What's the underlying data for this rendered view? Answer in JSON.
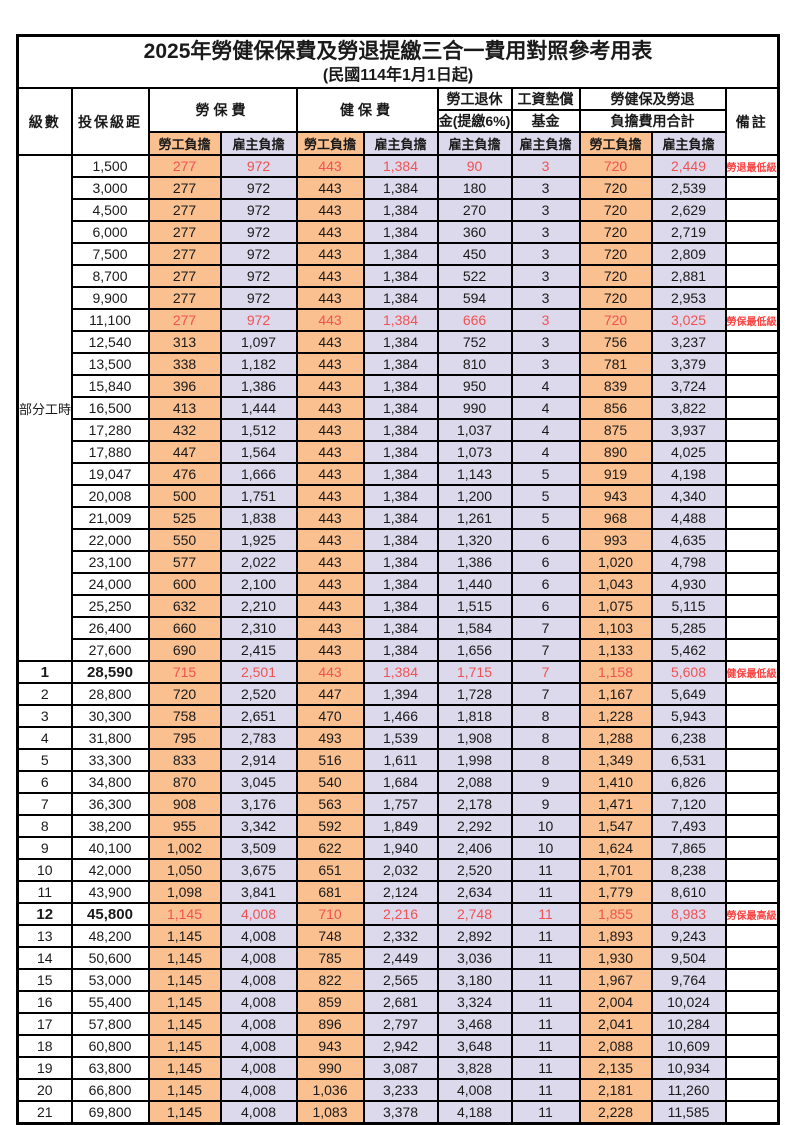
{
  "title": {
    "line1": "2025年勞健保保費及勞退提繳三合一費用對照參考用表",
    "line2": "(民國114年1月1日起)"
  },
  "header": {
    "level": "級數",
    "salary_bracket": "投保級距",
    "labor_fee": "勞保費",
    "health_fee": "健保費",
    "pension_line1": "勞工退休",
    "pension_line2": "金(提繳6%)",
    "wage_fund_line1": "工資墊償",
    "wage_fund_line2": "基金",
    "total_line1": "勞健保及勞退",
    "total_line2": "負擔費用合計",
    "note": "備註",
    "employee_share": "勞工負擔",
    "employer_share": "雇主負擔"
  },
  "labels": {
    "part_time": "部分工時"
  },
  "colors": {
    "employee_bg": "#FAC090",
    "employer_bg": "#DCD9EC",
    "highlight_value": "#F05252",
    "note_text": "#FF4242",
    "border": "#000000"
  },
  "rows": [
    {
      "level": "",
      "salary": "1,500",
      "labor_emp": "277",
      "labor_er": "972",
      "health_emp": "443",
      "health_er": "1,384",
      "pension_er": "90",
      "fund_er": "3",
      "total_emp": "720",
      "total_er": "2,449",
      "note": "勞退最低級距",
      "red": true
    },
    {
      "level": "",
      "salary": "3,000",
      "labor_emp": "277",
      "labor_er": "972",
      "health_emp": "443",
      "health_er": "1,384",
      "pension_er": "180",
      "fund_er": "3",
      "total_emp": "720",
      "total_er": "2,539",
      "note": ""
    },
    {
      "level": "",
      "salary": "4,500",
      "labor_emp": "277",
      "labor_er": "972",
      "health_emp": "443",
      "health_er": "1,384",
      "pension_er": "270",
      "fund_er": "3",
      "total_emp": "720",
      "total_er": "2,629",
      "note": ""
    },
    {
      "level": "",
      "salary": "6,000",
      "labor_emp": "277",
      "labor_er": "972",
      "health_emp": "443",
      "health_er": "1,384",
      "pension_er": "360",
      "fund_er": "3",
      "total_emp": "720",
      "total_er": "2,719",
      "note": ""
    },
    {
      "level": "",
      "salary": "7,500",
      "labor_emp": "277",
      "labor_er": "972",
      "health_emp": "443",
      "health_er": "1,384",
      "pension_er": "450",
      "fund_er": "3",
      "total_emp": "720",
      "total_er": "2,809",
      "note": ""
    },
    {
      "level": "",
      "salary": "8,700",
      "labor_emp": "277",
      "labor_er": "972",
      "health_emp": "443",
      "health_er": "1,384",
      "pension_er": "522",
      "fund_er": "3",
      "total_emp": "720",
      "total_er": "2,881",
      "note": ""
    },
    {
      "level": "",
      "salary": "9,900",
      "labor_emp": "277",
      "labor_er": "972",
      "health_emp": "443",
      "health_er": "1,384",
      "pension_er": "594",
      "fund_er": "3",
      "total_emp": "720",
      "total_er": "2,953",
      "note": ""
    },
    {
      "level": "",
      "salary": "11,100",
      "labor_emp": "277",
      "labor_er": "972",
      "health_emp": "443",
      "health_er": "1,384",
      "pension_er": "666",
      "fund_er": "3",
      "total_emp": "720",
      "total_er": "3,025",
      "note": "勞保最低級距",
      "red": true
    },
    {
      "level": "",
      "salary": "12,540",
      "labor_emp": "313",
      "labor_er": "1,097",
      "health_emp": "443",
      "health_er": "1,384",
      "pension_er": "752",
      "fund_er": "3",
      "total_emp": "756",
      "total_er": "3,237",
      "note": ""
    },
    {
      "level": "",
      "salary": "13,500",
      "labor_emp": "338",
      "labor_er": "1,182",
      "health_emp": "443",
      "health_er": "1,384",
      "pension_er": "810",
      "fund_er": "3",
      "total_emp": "781",
      "total_er": "3,379",
      "note": ""
    },
    {
      "level": "",
      "salary": "15,840",
      "labor_emp": "396",
      "labor_er": "1,386",
      "health_emp": "443",
      "health_er": "1,384",
      "pension_er": "950",
      "fund_er": "4",
      "total_emp": "839",
      "total_er": "3,724",
      "note": ""
    },
    {
      "level": "",
      "salary": "16,500",
      "labor_emp": "413",
      "labor_er": "1,444",
      "health_emp": "443",
      "health_er": "1,384",
      "pension_er": "990",
      "fund_er": "4",
      "total_emp": "856",
      "total_er": "3,822",
      "note": ""
    },
    {
      "level": "",
      "salary": "17,280",
      "labor_emp": "432",
      "labor_er": "1,512",
      "health_emp": "443",
      "health_er": "1,384",
      "pension_er": "1,037",
      "fund_er": "4",
      "total_emp": "875",
      "total_er": "3,937",
      "note": ""
    },
    {
      "level": "",
      "salary": "17,880",
      "labor_emp": "447",
      "labor_er": "1,564",
      "health_emp": "443",
      "health_er": "1,384",
      "pension_er": "1,073",
      "fund_er": "4",
      "total_emp": "890",
      "total_er": "4,025",
      "note": ""
    },
    {
      "level": "",
      "salary": "19,047",
      "labor_emp": "476",
      "labor_er": "1,666",
      "health_emp": "443",
      "health_er": "1,384",
      "pension_er": "1,143",
      "fund_er": "5",
      "total_emp": "919",
      "total_er": "4,198",
      "note": ""
    },
    {
      "level": "",
      "salary": "20,008",
      "labor_emp": "500",
      "labor_er": "1,751",
      "health_emp": "443",
      "health_er": "1,384",
      "pension_er": "1,200",
      "fund_er": "5",
      "total_emp": "943",
      "total_er": "4,340",
      "note": ""
    },
    {
      "level": "",
      "salary": "21,009",
      "labor_emp": "525",
      "labor_er": "1,838",
      "health_emp": "443",
      "health_er": "1,384",
      "pension_er": "1,261",
      "fund_er": "5",
      "total_emp": "968",
      "total_er": "4,488",
      "note": ""
    },
    {
      "level": "",
      "salary": "22,000",
      "labor_emp": "550",
      "labor_er": "1,925",
      "health_emp": "443",
      "health_er": "1,384",
      "pension_er": "1,320",
      "fund_er": "6",
      "total_emp": "993",
      "total_er": "4,635",
      "note": ""
    },
    {
      "level": "",
      "salary": "23,100",
      "labor_emp": "577",
      "labor_er": "2,022",
      "health_emp": "443",
      "health_er": "1,384",
      "pension_er": "1,386",
      "fund_er": "6",
      "total_emp": "1,020",
      "total_er": "4,798",
      "note": ""
    },
    {
      "level": "",
      "salary": "24,000",
      "labor_emp": "600",
      "labor_er": "2,100",
      "health_emp": "443",
      "health_er": "1,384",
      "pension_er": "1,440",
      "fund_er": "6",
      "total_emp": "1,043",
      "total_er": "4,930",
      "note": ""
    },
    {
      "level": "",
      "salary": "25,250",
      "labor_emp": "632",
      "labor_er": "2,210",
      "health_emp": "443",
      "health_er": "1,384",
      "pension_er": "1,515",
      "fund_er": "6",
      "total_emp": "1,075",
      "total_er": "5,115",
      "note": ""
    },
    {
      "level": "",
      "salary": "26,400",
      "labor_emp": "660",
      "labor_er": "2,310",
      "health_emp": "443",
      "health_er": "1,384",
      "pension_er": "1,584",
      "fund_er": "7",
      "total_emp": "1,103",
      "total_er": "5,285",
      "note": ""
    },
    {
      "level": "",
      "salary": "27,600",
      "labor_emp": "690",
      "labor_er": "2,415",
      "health_emp": "443",
      "health_er": "1,384",
      "pension_er": "1,656",
      "fund_er": "7",
      "total_emp": "1,133",
      "total_er": "5,462",
      "note": ""
    },
    {
      "level": "1",
      "salary": "28,590",
      "labor_emp": "715",
      "labor_er": "2,501",
      "health_emp": "443",
      "health_er": "1,384",
      "pension_er": "1,715",
      "fund_er": "7",
      "total_emp": "1,158",
      "total_er": "5,608",
      "note": "健保最低級距",
      "red": true,
      "bold": true
    },
    {
      "level": "2",
      "salary": "28,800",
      "labor_emp": "720",
      "labor_er": "2,520",
      "health_emp": "447",
      "health_er": "1,394",
      "pension_er": "1,728",
      "fund_er": "7",
      "total_emp": "1,167",
      "total_er": "5,649",
      "note": ""
    },
    {
      "level": "3",
      "salary": "30,300",
      "labor_emp": "758",
      "labor_er": "2,651",
      "health_emp": "470",
      "health_er": "1,466",
      "pension_er": "1,818",
      "fund_er": "8",
      "total_emp": "1,228",
      "total_er": "5,943",
      "note": ""
    },
    {
      "level": "4",
      "salary": "31,800",
      "labor_emp": "795",
      "labor_er": "2,783",
      "health_emp": "493",
      "health_er": "1,539",
      "pension_er": "1,908",
      "fund_er": "8",
      "total_emp": "1,288",
      "total_er": "6,238",
      "note": ""
    },
    {
      "level": "5",
      "salary": "33,300",
      "labor_emp": "833",
      "labor_er": "2,914",
      "health_emp": "516",
      "health_er": "1,611",
      "pension_er": "1,998",
      "fund_er": "8",
      "total_emp": "1,349",
      "total_er": "6,531",
      "note": ""
    },
    {
      "level": "6",
      "salary": "34,800",
      "labor_emp": "870",
      "labor_er": "3,045",
      "health_emp": "540",
      "health_er": "1,684",
      "pension_er": "2,088",
      "fund_er": "9",
      "total_emp": "1,410",
      "total_er": "6,826",
      "note": ""
    },
    {
      "level": "7",
      "salary": "36,300",
      "labor_emp": "908",
      "labor_er": "3,176",
      "health_emp": "563",
      "health_er": "1,757",
      "pension_er": "2,178",
      "fund_er": "9",
      "total_emp": "1,471",
      "total_er": "7,120",
      "note": ""
    },
    {
      "level": "8",
      "salary": "38,200",
      "labor_emp": "955",
      "labor_er": "3,342",
      "health_emp": "592",
      "health_er": "1,849",
      "pension_er": "2,292",
      "fund_er": "10",
      "total_emp": "1,547",
      "total_er": "7,493",
      "note": ""
    },
    {
      "level": "9",
      "salary": "40,100",
      "labor_emp": "1,002",
      "labor_er": "3,509",
      "health_emp": "622",
      "health_er": "1,940",
      "pension_er": "2,406",
      "fund_er": "10",
      "total_emp": "1,624",
      "total_er": "7,865",
      "note": ""
    },
    {
      "level": "10",
      "salary": "42,000",
      "labor_emp": "1,050",
      "labor_er": "3,675",
      "health_emp": "651",
      "health_er": "2,032",
      "pension_er": "2,520",
      "fund_er": "11",
      "total_emp": "1,701",
      "total_er": "8,238",
      "note": ""
    },
    {
      "level": "11",
      "salary": "43,900",
      "labor_emp": "1,098",
      "labor_er": "3,841",
      "health_emp": "681",
      "health_er": "2,124",
      "pension_er": "2,634",
      "fund_er": "11",
      "total_emp": "1,779",
      "total_er": "8,610",
      "note": ""
    },
    {
      "level": "12",
      "salary": "45,800",
      "labor_emp": "1,145",
      "labor_er": "4,008",
      "health_emp": "710",
      "health_er": "2,216",
      "pension_er": "2,748",
      "fund_er": "11",
      "total_emp": "1,855",
      "total_er": "8,983",
      "note": "勞保最高級距",
      "red": true,
      "bold": true
    },
    {
      "level": "13",
      "salary": "48,200",
      "labor_emp": "1,145",
      "labor_er": "4,008",
      "health_emp": "748",
      "health_er": "2,332",
      "pension_er": "2,892",
      "fund_er": "11",
      "total_emp": "1,893",
      "total_er": "9,243",
      "note": ""
    },
    {
      "level": "14",
      "salary": "50,600",
      "labor_emp": "1,145",
      "labor_er": "4,008",
      "health_emp": "785",
      "health_er": "2,449",
      "pension_er": "3,036",
      "fund_er": "11",
      "total_emp": "1,930",
      "total_er": "9,504",
      "note": ""
    },
    {
      "level": "15",
      "salary": "53,000",
      "labor_emp": "1,145",
      "labor_er": "4,008",
      "health_emp": "822",
      "health_er": "2,565",
      "pension_er": "3,180",
      "fund_er": "11",
      "total_emp": "1,967",
      "total_er": "9,764",
      "note": ""
    },
    {
      "level": "16",
      "salary": "55,400",
      "labor_emp": "1,145",
      "labor_er": "4,008",
      "health_emp": "859",
      "health_er": "2,681",
      "pension_er": "3,324",
      "fund_er": "11",
      "total_emp": "2,004",
      "total_er": "10,024",
      "note": ""
    },
    {
      "level": "17",
      "salary": "57,800",
      "labor_emp": "1,145",
      "labor_er": "4,008",
      "health_emp": "896",
      "health_er": "2,797",
      "pension_er": "3,468",
      "fund_er": "11",
      "total_emp": "2,041",
      "total_er": "10,284",
      "note": ""
    },
    {
      "level": "18",
      "salary": "60,800",
      "labor_emp": "1,145",
      "labor_er": "4,008",
      "health_emp": "943",
      "health_er": "2,942",
      "pension_er": "3,648",
      "fund_er": "11",
      "total_emp": "2,088",
      "total_er": "10,609",
      "note": ""
    },
    {
      "level": "19",
      "salary": "63,800",
      "labor_emp": "1,145",
      "labor_er": "4,008",
      "health_emp": "990",
      "health_er": "3,087",
      "pension_er": "3,828",
      "fund_er": "11",
      "total_emp": "2,135",
      "total_er": "10,934",
      "note": ""
    },
    {
      "level": "20",
      "salary": "66,800",
      "labor_emp": "1,145",
      "labor_er": "4,008",
      "health_emp": "1,036",
      "health_er": "3,233",
      "pension_er": "4,008",
      "fund_er": "11",
      "total_emp": "2,181",
      "total_er": "11,260",
      "note": ""
    },
    {
      "level": "21",
      "salary": "69,800",
      "labor_emp": "1,145",
      "labor_er": "4,008",
      "health_emp": "1,083",
      "health_er": "3,378",
      "pension_er": "4,188",
      "fund_er": "11",
      "total_emp": "2,228",
      "total_er": "11,585",
      "note": ""
    }
  ]
}
